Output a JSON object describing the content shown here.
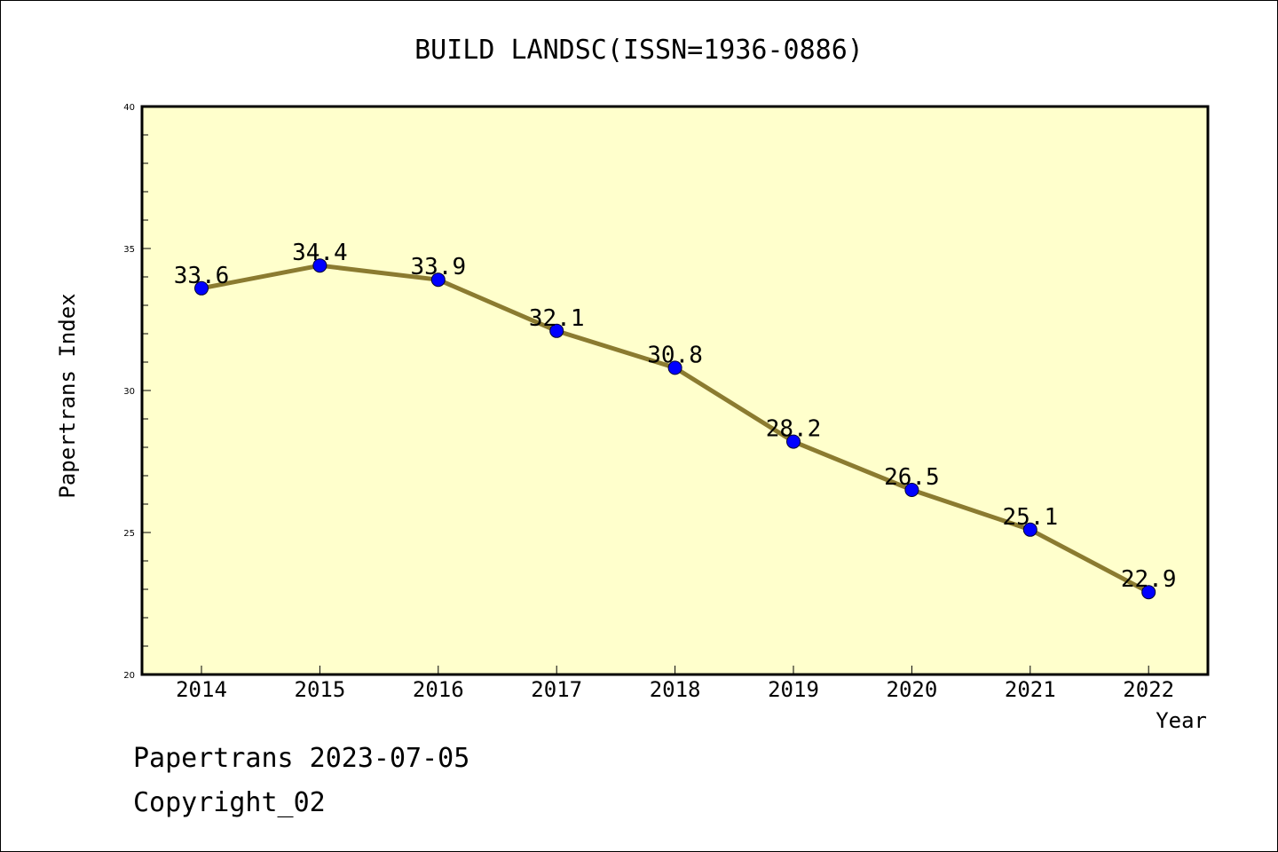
{
  "colors": {
    "plot_background": "#ffffcc",
    "line": "#8b7b30",
    "marker": "#0000ff",
    "frame": "#000000"
  },
  "chart_data": {
    "type": "line",
    "title": "BUILD LANDSC(ISSN=1936-0886)",
    "xlabel": "Year",
    "ylabel": "Papertrans Index",
    "x": [
      2014,
      2015,
      2016,
      2017,
      2018,
      2019,
      2020,
      2021,
      2022
    ],
    "x_tick_labels": [
      "2014",
      "2015",
      "2016",
      "2017",
      "2018",
      "2019",
      "2020",
      "2021",
      "2022"
    ],
    "values": [
      33.6,
      34.4,
      33.9,
      32.1,
      30.8,
      28.2,
      26.5,
      25.1,
      22.9
    ],
    "data_labels": [
      "33.6",
      "34.4",
      "33.9",
      "32.1",
      "30.8",
      "28.2",
      "26.5",
      "25.1",
      "22.9"
    ],
    "ylim": [
      20,
      40
    ],
    "y_ticks": [
      20,
      25,
      30,
      35,
      40
    ],
    "y_tick_labels": [
      "20",
      "25",
      "30",
      "35",
      "40"
    ],
    "grid": false,
    "legend": "none"
  },
  "footer": {
    "line1": "Papertrans 2023-07-05",
    "line2": "Copyright_02"
  }
}
